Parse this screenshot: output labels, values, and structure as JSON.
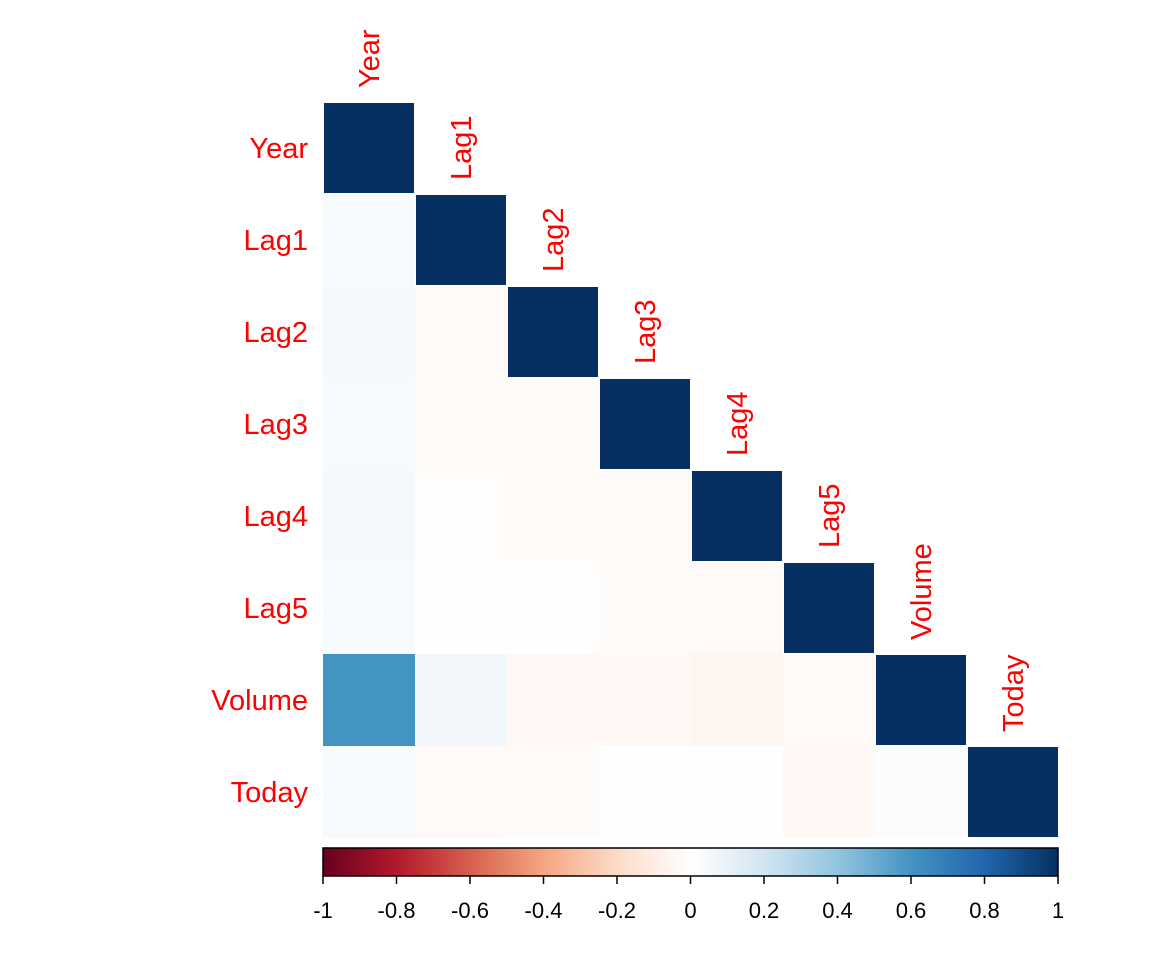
{
  "chart_data": {
    "type": "heatmap",
    "variables": [
      "Year",
      "Lag1",
      "Lag2",
      "Lag3",
      "Lag4",
      "Lag5",
      "Volume",
      "Today"
    ],
    "matrix_shape": "lower",
    "values": [
      [
        1.0
      ],
      [
        0.03,
        1.0
      ],
      [
        0.05,
        -0.03,
        1.0
      ],
      [
        0.04,
        -0.02,
        -0.02,
        1.0
      ],
      [
        0.05,
        -0.01,
        -0.02,
        -0.03,
        1.0
      ],
      [
        0.03,
        -0.005,
        -0.005,
        -0.02,
        -0.03,
        1.0
      ],
      [
        0.6,
        0.06,
        -0.04,
        -0.04,
        -0.05,
        -0.03,
        1.0
      ],
      [
        0.04,
        -0.03,
        -0.02,
        -0.005,
        -0.005,
        -0.04,
        0.02,
        1.0
      ]
    ],
    "colorbar": {
      "range": [
        -1,
        1
      ],
      "ticks": [
        "-1",
        "-0.8",
        "-0.6",
        "-0.4",
        "-0.2",
        "0",
        "0.2",
        "0.4",
        "0.6",
        "0.8",
        "1"
      ],
      "colors": {
        "neg1": "#67001f",
        "neg08": "#b2182b",
        "neg06": "#d6604d",
        "neg04": "#f4a582",
        "neg02": "#fddbc7",
        "zero": "#ffffff",
        "pos02": "#d1e5f0",
        "pos04": "#92c5de",
        "pos06": "#4393c3",
        "pos08": "#2166ac",
        "pos1": "#053061"
      }
    },
    "label_color": "#ff0000",
    "legend": "bottom"
  }
}
